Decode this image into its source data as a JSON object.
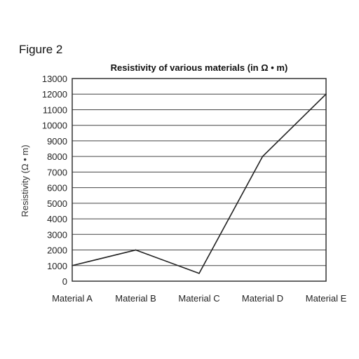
{
  "figure_label": "Figure 2",
  "chart_data": {
    "type": "line",
    "title": "Resistivity of various materials (in Ω • m)",
    "xlabel": "",
    "ylabel": "Resistivity (Ω • m)",
    "categories": [
      "Material A",
      "Material B",
      "Material C",
      "Material D",
      "Material E"
    ],
    "values": [
      1000,
      2000,
      500,
      8000,
      12000
    ],
    "ylim": [
      0,
      13000
    ],
    "yticks": [
      0,
      1000,
      2000,
      3000,
      4000,
      5000,
      6000,
      7000,
      8000,
      9000,
      10000,
      11000,
      12000,
      13000
    ],
    "grid": true,
    "line_color": "#222222"
  }
}
